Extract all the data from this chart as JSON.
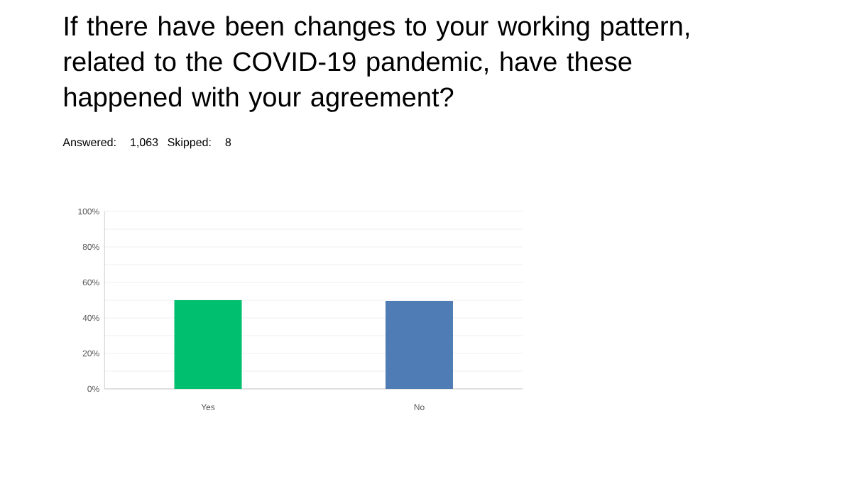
{
  "chart_data": {
    "type": "bar",
    "title": "If there have been changes to your working pattern, related to the COVID-19 pandemic, have these happened with your agreement?",
    "subtitle": "Answered: 1,063    Skipped: 8",
    "categories": [
      "Yes",
      "No"
    ],
    "values": [
      50,
      49.6
    ],
    "colors": [
      "#00bf6f",
      "#507cb6"
    ],
    "ylim": [
      0,
      100
    ],
    "yticks": [
      {
        "value": 0,
        "label": "0%"
      },
      {
        "value": 10,
        "label": null
      },
      {
        "value": 20,
        "label": "20%"
      },
      {
        "value": 30,
        "label": null
      },
      {
        "value": 40,
        "label": "40%"
      },
      {
        "value": 50,
        "label": null
      },
      {
        "value": 60,
        "label": "60%"
      },
      {
        "value": 70,
        "label": null
      },
      {
        "value": 80,
        "label": "80%"
      },
      {
        "value": 90,
        "label": null
      },
      {
        "value": 100,
        "label": "100%"
      }
    ],
    "grid": "y"
  }
}
